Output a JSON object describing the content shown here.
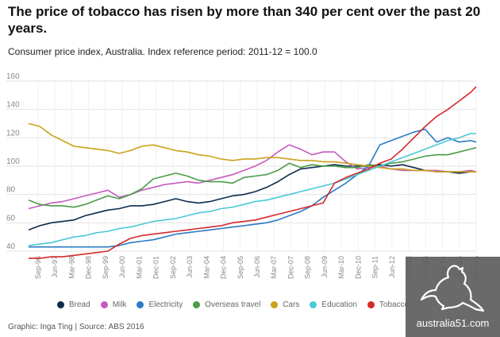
{
  "title": "The price of tobacco has risen by more than 340 per cent over the past 20 years.",
  "subtitle": "Consumer price index, Australia. Index reference period: 2011-12 = 100.0",
  "source": "Graphic: Inga Ting | Source: ABS 2016",
  "watermark": {
    "text": "australia51.com",
    "icon": "kangaroo-icon"
  },
  "chart_data": {
    "type": "line",
    "title": "The price of tobacco has risen by more than 340 per cent over the past 20 years.",
    "xlabel": "",
    "ylabel": "",
    "ylim": [
      40,
      160
    ],
    "yticks": [
      40,
      60,
      80,
      100,
      120,
      140,
      160
    ],
    "xlim": [
      1996.5,
      2016.25
    ],
    "xtick_labels": [
      "Sep-96",
      "Jun-97",
      "Mar-98",
      "Dec-98",
      "Sep-99",
      "Jun-00",
      "Mar-01",
      "Dec-01",
      "Sep-02",
      "Jun-03",
      "Mar-04",
      "Dec-04",
      "Sep-05",
      "Jun-06",
      "Mar-07",
      "Dec-07",
      "Sep-08",
      "Jun-09",
      "Mar-10",
      "Dec-10",
      "Sep-11",
      "Jun-12",
      "Mar-13",
      "Dec-13",
      "Sep-14",
      "Jun-15",
      "Mar-16"
    ],
    "grid": true,
    "legend_position": "bottom",
    "series": [
      {
        "name": "Bread",
        "color": "#0d2b4e",
        "x": [
          1996.5,
          1997,
          1997.5,
          1998,
          1998.5,
          1999,
          1999.5,
          2000,
          2000.5,
          2001,
          2001.5,
          2002,
          2002.5,
          2003,
          2003.5,
          2004,
          2004.5,
          2005,
          2005.5,
          2006,
          2006.5,
          2007,
          2007.5,
          2008,
          2008.5,
          2009,
          2009.5,
          2010,
          2010.5,
          2011,
          2011.5,
          2012,
          2012.5,
          2013,
          2013.5,
          2014,
          2014.5,
          2015,
          2015.5,
          2016,
          2016.25
        ],
        "values": [
          55,
          58,
          60,
          61,
          62,
          65,
          67,
          69,
          70,
          72,
          72,
          73,
          75,
          77,
          75,
          74,
          75,
          77,
          79,
          80,
          82,
          85,
          89,
          94,
          98,
          99,
          100,
          101,
          100,
          100,
          100,
          101,
          100,
          101,
          99,
          97,
          96,
          96,
          95,
          96,
          96
        ]
      },
      {
        "name": "Milk",
        "color": "#c55bc0",
        "x": [
          1996.5,
          1997,
          1997.5,
          1998,
          1998.5,
          1999,
          1999.5,
          2000,
          2000.5,
          2001,
          2001.5,
          2002,
          2002.5,
          2003,
          2003.5,
          2004,
          2004.5,
          2005,
          2005.5,
          2006,
          2006.5,
          2007,
          2007.5,
          2008,
          2008.5,
          2009,
          2009.5,
          2010,
          2010.5,
          2011,
          2011.5,
          2012,
          2012.5,
          2013,
          2013.5,
          2014,
          2014.5,
          2015,
          2015.5,
          2016,
          2016.25
        ],
        "values": [
          70,
          72,
          74,
          75,
          77,
          79,
          81,
          83,
          78,
          80,
          83,
          85,
          87,
          88,
          89,
          88,
          90,
          92,
          94,
          97,
          100,
          104,
          110,
          115,
          112,
          108,
          110,
          110,
          103,
          98,
          99,
          100,
          98,
          97,
          97,
          97,
          97,
          96,
          96,
          97,
          96
        ]
      },
      {
        "name": "Electricity",
        "color": "#2b7bc4",
        "x": [
          1996.5,
          1997,
          1997.5,
          1998,
          1998.5,
          1999,
          1999.5,
          2000,
          2000.5,
          2001,
          2001.5,
          2002,
          2002.5,
          2003,
          2003.5,
          2004,
          2004.5,
          2005,
          2005.5,
          2006,
          2006.5,
          2007,
          2007.5,
          2008,
          2008.5,
          2009,
          2009.5,
          2010,
          2010.5,
          2011,
          2011.5,
          2012,
          2012.5,
          2013,
          2013.5,
          2014,
          2014.5,
          2015,
          2015.5,
          2016,
          2016.25
        ],
        "values": [
          43,
          43,
          43,
          43,
          43,
          43,
          43,
          43,
          44,
          46,
          47,
          48,
          50,
          52,
          53,
          54,
          55,
          56,
          57,
          58,
          59,
          60,
          62,
          65,
          68,
          72,
          78,
          83,
          88,
          94,
          100,
          115,
          118,
          121,
          124,
          126,
          117,
          120,
          117,
          118,
          117
        ]
      },
      {
        "name": "Overseas travel",
        "color": "#4a9d47",
        "x": [
          1996.5,
          1997,
          1997.5,
          1998,
          1998.5,
          1999,
          1999.5,
          2000,
          2000.5,
          2001,
          2001.5,
          2002,
          2002.5,
          2003,
          2003.5,
          2004,
          2004.5,
          2005,
          2005.5,
          2006,
          2006.5,
          2007,
          2007.5,
          2008,
          2008.5,
          2009,
          2009.5,
          2010,
          2010.5,
          2011,
          2011.5,
          2012,
          2012.5,
          2013,
          2013.5,
          2014,
          2014.5,
          2015,
          2015.5,
          2016,
          2016.25
        ],
        "values": [
          76,
          73,
          72,
          72,
          71,
          73,
          76,
          79,
          77,
          80,
          84,
          91,
          93,
          95,
          93,
          90,
          89,
          89,
          88,
          92,
          93,
          94,
          97,
          102,
          99,
          101,
          100,
          100,
          99,
          99,
          101,
          100,
          102,
          103,
          105,
          107,
          108,
          108,
          110,
          112,
          113
        ]
      },
      {
        "name": "Cars",
        "color": "#c9a21a",
        "x": [
          1996.5,
          1997,
          1997.5,
          1998,
          1998.5,
          1999,
          1999.5,
          2000,
          2000.5,
          2001,
          2001.5,
          2002,
          2002.5,
          2003,
          2003.5,
          2004,
          2004.5,
          2005,
          2005.5,
          2006,
          2006.5,
          2007,
          2007.5,
          2008,
          2008.5,
          2009,
          2009.5,
          2010,
          2010.5,
          2011,
          2011.5,
          2012,
          2012.5,
          2013,
          2013.5,
          2014,
          2014.5,
          2015,
          2015.5,
          2016,
          2016.25
        ],
        "values": [
          130,
          128,
          122,
          118,
          114,
          113,
          112,
          111,
          109,
          111,
          114,
          115,
          113,
          111,
          110,
          108,
          107,
          105,
          104,
          105,
          105,
          106,
          106,
          105,
          104,
          104,
          103,
          103,
          102,
          101,
          100,
          99,
          98,
          98,
          97,
          97,
          96,
          96,
          96,
          96,
          96
        ]
      },
      {
        "name": "Education",
        "color": "#4cc8d8",
        "x": [
          1996.5,
          1997,
          1997.5,
          1998,
          1998.5,
          1999,
          1999.5,
          2000,
          2000.5,
          2001,
          2001.5,
          2002,
          2002.5,
          2003,
          2003.5,
          2004,
          2004.5,
          2005,
          2005.5,
          2006,
          2006.5,
          2007,
          2007.5,
          2008,
          2008.5,
          2009,
          2009.5,
          2010,
          2010.5,
          2011,
          2011.5,
          2012,
          2012.5,
          2013,
          2013.5,
          2014,
          2014.5,
          2015,
          2015.5,
          2016,
          2016.25
        ],
        "values": [
          44,
          45,
          46,
          48,
          50,
          51,
          53,
          54,
          56,
          57,
          59,
          61,
          62,
          63,
          65,
          67,
          68,
          70,
          71,
          73,
          75,
          76,
          78,
          80,
          82,
          84,
          86,
          88,
          91,
          94,
          97,
          100,
          103,
          106,
          109,
          112,
          115,
          118,
          120,
          123,
          123
        ]
      },
      {
        "name": "Tobacco",
        "color": "#d42a2a",
        "x": [
          1996.5,
          1997,
          1997.5,
          1998,
          1998.5,
          1999,
          1999.5,
          2000,
          2000.5,
          2001,
          2001.5,
          2002,
          2002.5,
          2003,
          2003.5,
          2004,
          2004.5,
          2005,
          2005.5,
          2006,
          2006.5,
          2007,
          2007.5,
          2008,
          2008.5,
          2009,
          2009.5,
          2010,
          2010.5,
          2011,
          2011.5,
          2012,
          2012.5,
          2013,
          2013.5,
          2014,
          2014.5,
          2015,
          2015.5,
          2016,
          2016.25
        ],
        "values": [
          35,
          35,
          36,
          36,
          37,
          38,
          39,
          40,
          45,
          49,
          51,
          52,
          53,
          54,
          55,
          56,
          57,
          58,
          60,
          61,
          62,
          64,
          66,
          68,
          70,
          72,
          74,
          88,
          92,
          95,
          98,
          102,
          105,
          112,
          120,
          128,
          135,
          140,
          146,
          152,
          156
        ]
      }
    ]
  }
}
